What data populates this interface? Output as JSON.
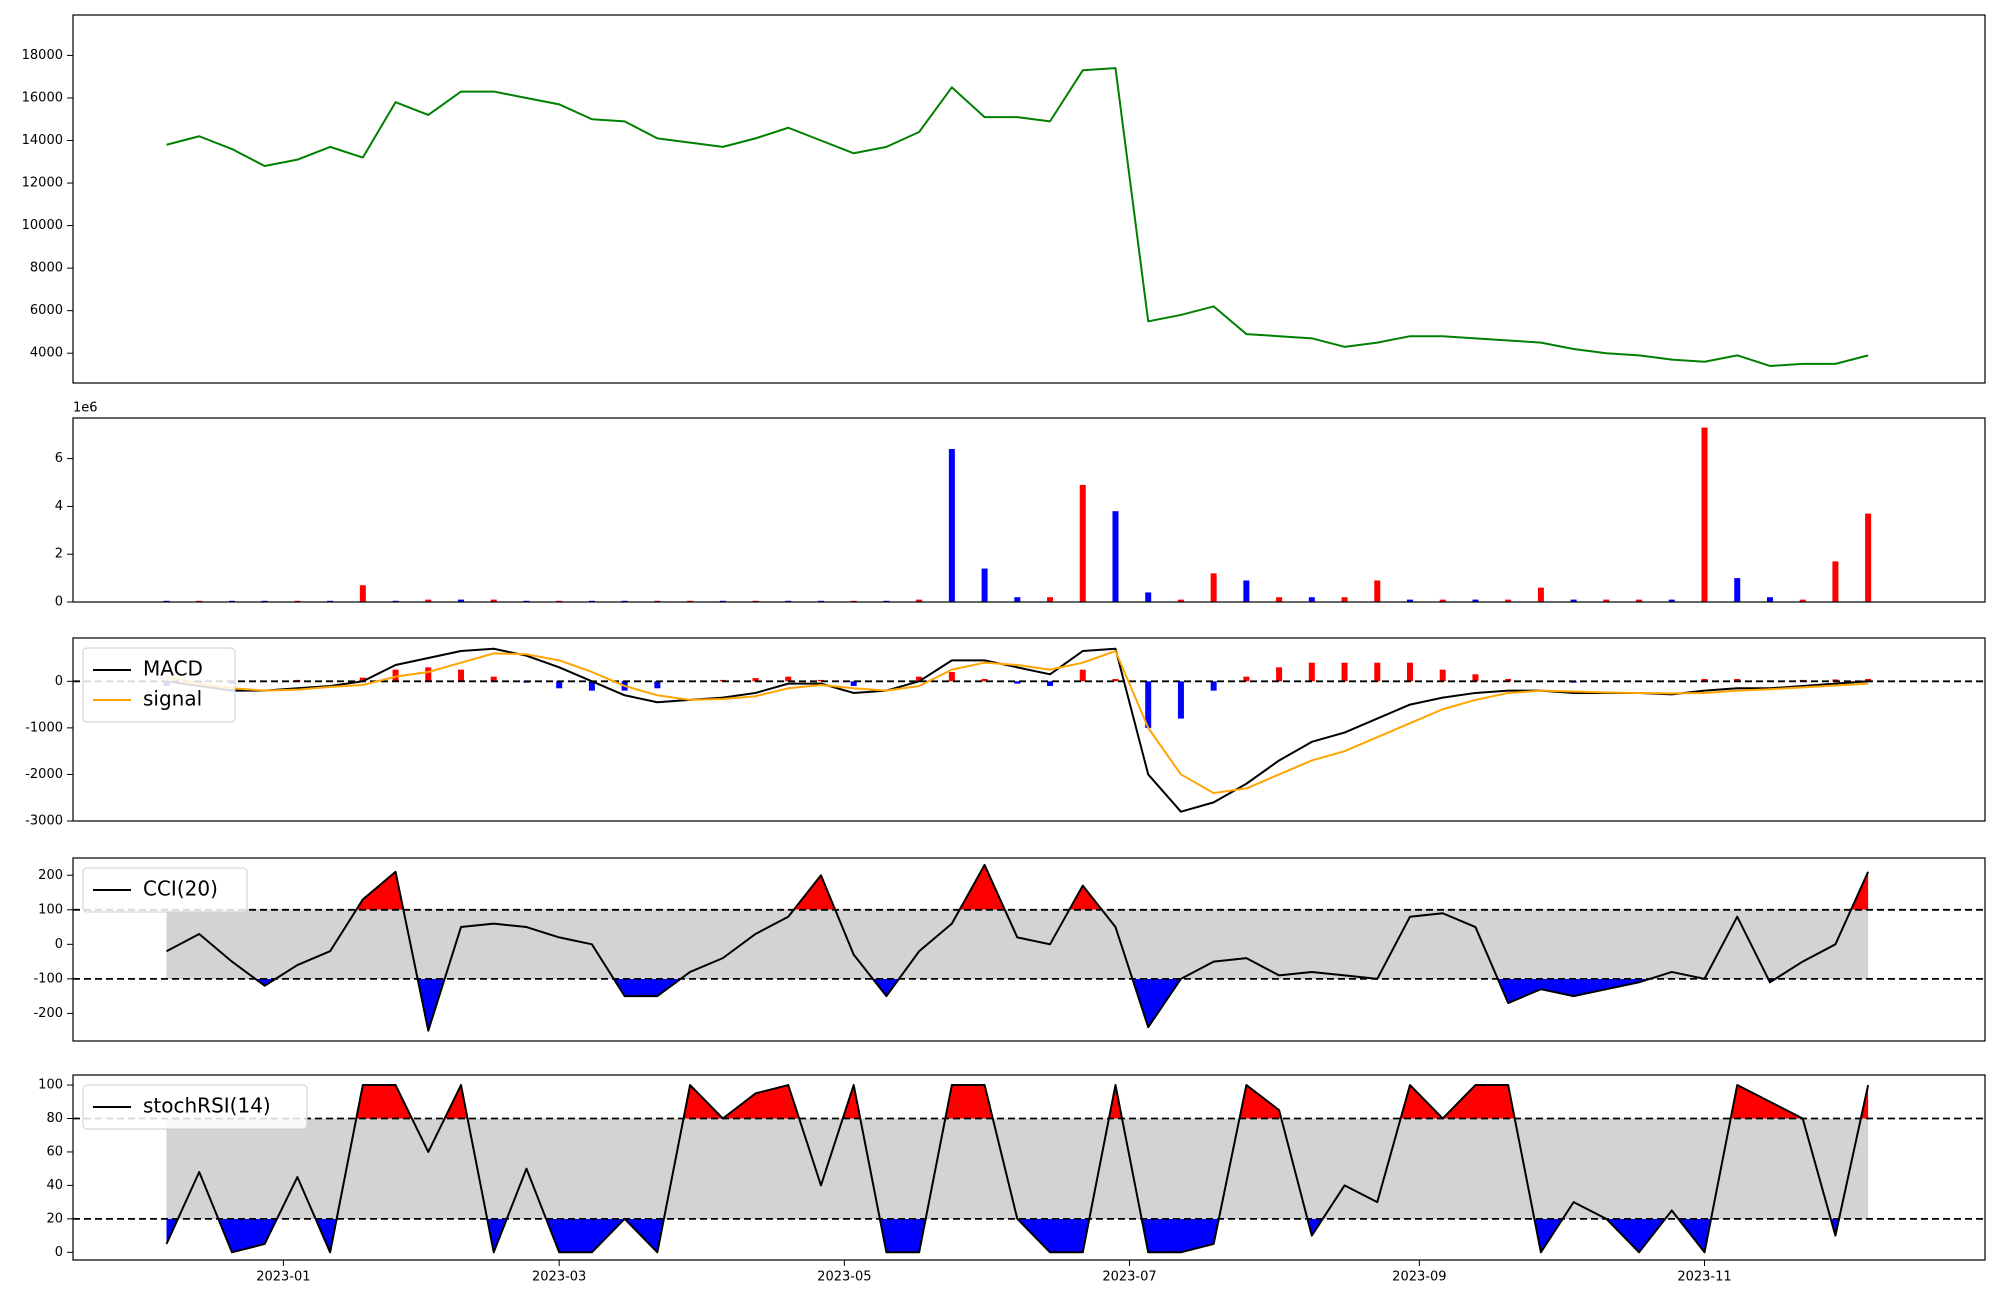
{
  "chart_data": [
    {
      "type": "line",
      "x": [
        "2022-12-07",
        "2022-12-14",
        "2022-12-21",
        "2022-12-28",
        "2023-01-04",
        "2023-01-11",
        "2023-01-18",
        "2023-01-25",
        "2023-02-01",
        "2023-02-08",
        "2023-02-15",
        "2023-02-22",
        "2023-03-01",
        "2023-03-08",
        "2023-03-15",
        "2023-03-22",
        "2023-03-29",
        "2023-04-05",
        "2023-04-12",
        "2023-04-19",
        "2023-04-26",
        "2023-05-03",
        "2023-05-10",
        "2023-05-17",
        "2023-05-24",
        "2023-05-31",
        "2023-06-07",
        "2023-06-14",
        "2023-06-21",
        "2023-06-28",
        "2023-07-05",
        "2023-07-12",
        "2023-07-19",
        "2023-07-26",
        "2023-08-02",
        "2023-08-09",
        "2023-08-16",
        "2023-08-23",
        "2023-08-30",
        "2023-09-06",
        "2023-09-13",
        "2023-09-20",
        "2023-09-27",
        "2023-10-04",
        "2023-10-11",
        "2023-10-18",
        "2023-10-25",
        "2023-11-01",
        "2023-11-08",
        "2023-11-15",
        "2023-11-22",
        "2023-11-29",
        "2023-12-06"
      ],
      "series": [
        {
          "color": "#008000",
          "values": [
            13800,
            14200,
            13600,
            12800,
            13100,
            13700,
            13200,
            15800,
            15200,
            16300,
            16300,
            16000,
            15700,
            15000,
            14900,
            14100,
            13900,
            13700,
            14100,
            14600,
            14000,
            13400,
            13700,
            14400,
            16500,
            15100,
            15100,
            14900,
            17300,
            17400,
            5500,
            5800,
            6200,
            4900,
            4800,
            4700,
            4300,
            4500,
            4800,
            4800,
            4700,
            4600,
            4500,
            4200,
            4000,
            3900,
            3700,
            3600,
            3900,
            3400,
            3500,
            3500,
            3900
          ]
        }
      ],
      "xlim": [
        "2022-11-17",
        "2023-12-31"
      ],
      "ylim": [
        2600,
        19900
      ],
      "yticks": [
        4000,
        6000,
        8000,
        10000,
        12000,
        14000,
        16000,
        18000
      ]
    },
    {
      "type": "bar",
      "x": [
        "2022-12-07",
        "2022-12-14",
        "2022-12-21",
        "2022-12-28",
        "2023-01-04",
        "2023-01-11",
        "2023-01-18",
        "2023-01-25",
        "2023-02-01",
        "2023-02-08",
        "2023-02-15",
        "2023-02-22",
        "2023-03-01",
        "2023-03-08",
        "2023-03-15",
        "2023-03-22",
        "2023-03-29",
        "2023-04-05",
        "2023-04-12",
        "2023-04-19",
        "2023-04-26",
        "2023-05-03",
        "2023-05-10",
        "2023-05-17",
        "2023-05-24",
        "2023-05-31",
        "2023-06-07",
        "2023-06-14",
        "2023-06-21",
        "2023-06-28",
        "2023-07-05",
        "2023-07-12",
        "2023-07-19",
        "2023-07-26",
        "2023-08-02",
        "2023-08-09",
        "2023-08-16",
        "2023-08-23",
        "2023-08-30",
        "2023-09-06",
        "2023-09-13",
        "2023-09-20",
        "2023-09-27",
        "2023-10-04",
        "2023-10-11",
        "2023-10-18",
        "2023-10-25",
        "2023-11-01",
        "2023-11-08",
        "2023-11-15",
        "2023-11-22",
        "2023-11-29",
        "2023-12-06"
      ],
      "values": [
        0.05,
        0.05,
        0.05,
        0.05,
        0.05,
        0.05,
        0.7,
        0.05,
        0.1,
        0.1,
        0.1,
        0.05,
        0.05,
        0.05,
        0.05,
        0.05,
        0.05,
        0.05,
        0.05,
        0.05,
        0.05,
        0.05,
        0.05,
        0.1,
        6.4,
        1.4,
        0.2,
        0.2,
        4.9,
        3.8,
        0.4,
        0.1,
        1.2,
        0.9,
        0.2,
        0.2,
        0.2,
        0.9,
        0.1,
        0.1,
        0.1,
        0.1,
        0.6,
        0.1,
        0.1,
        0.1,
        0.1,
        7.3,
        1.0,
        0.2,
        0.1,
        1.7,
        3.7
      ],
      "colors": [
        "blue",
        "red",
        "blue",
        "blue",
        "red",
        "blue",
        "red",
        "blue",
        "red",
        "blue",
        "red",
        "blue",
        "red",
        "blue",
        "blue",
        "red",
        "red",
        "blue",
        "red",
        "blue",
        "blue",
        "red",
        "blue",
        "red",
        "blue",
        "blue",
        "blue",
        "red",
        "red",
        "blue",
        "blue",
        "red",
        "red",
        "blue",
        "red",
        "blue",
        "red",
        "red",
        "blue",
        "red",
        "blue",
        "red",
        "red",
        "blue",
        "red",
        "red",
        "blue",
        "red",
        "blue",
        "blue",
        "red",
        "red",
        "red"
      ],
      "offset_label": "1e6",
      "xlim": [
        "2022-11-17",
        "2023-12-31"
      ],
      "ylim": [
        0,
        7.7
      ],
      "yticks": [
        0,
        2,
        4,
        6
      ]
    },
    {
      "type": "macd",
      "x": [
        "2022-12-07",
        "2022-12-14",
        "2022-12-21",
        "2022-12-28",
        "2023-01-04",
        "2023-01-11",
        "2023-01-18",
        "2023-01-25",
        "2023-02-01",
        "2023-02-08",
        "2023-02-15",
        "2023-02-22",
        "2023-03-01",
        "2023-03-08",
        "2023-03-15",
        "2023-03-22",
        "2023-03-29",
        "2023-04-05",
        "2023-04-12",
        "2023-04-19",
        "2023-04-26",
        "2023-05-03",
        "2023-05-10",
        "2023-05-17",
        "2023-05-24",
        "2023-05-31",
        "2023-06-07",
        "2023-06-14",
        "2023-06-21",
        "2023-06-28",
        "2023-07-05",
        "2023-07-12",
        "2023-07-19",
        "2023-07-26",
        "2023-08-02",
        "2023-08-09",
        "2023-08-16",
        "2023-08-23",
        "2023-08-30",
        "2023-09-06",
        "2023-09-13",
        "2023-09-20",
        "2023-09-27",
        "2023-10-04",
        "2023-10-11",
        "2023-10-18",
        "2023-10-25",
        "2023-11-01",
        "2023-11-08",
        "2023-11-15",
        "2023-11-22",
        "2023-11-29",
        "2023-12-06"
      ],
      "histogram": {
        "positive_color": "red",
        "negative_color": "blue",
        "values": [
          -100,
          -50,
          -50,
          0,
          30,
          20,
          80,
          250,
          300,
          250,
          100,
          -30,
          -150,
          -200,
          -200,
          -150,
          0,
          30,
          70,
          100,
          30,
          -100,
          0,
          100,
          200,
          50,
          -50,
          -100,
          250,
          50,
          -1000,
          -800,
          -200,
          100,
          300,
          400,
          400,
          400,
          400,
          250,
          150,
          50,
          0,
          -30,
          -10,
          0,
          -20,
          50,
          50,
          20,
          30,
          40,
          50
        ]
      },
      "series": [
        {
          "name": "MACD",
          "color": "#000000",
          "values": [
            0,
            -100,
            -200,
            -200,
            -150,
            -100,
            0,
            350,
            500,
            650,
            700,
            550,
            300,
            0,
            -300,
            -450,
            -400,
            -350,
            -250,
            -50,
            -50,
            -250,
            -200,
            0,
            450,
            450,
            300,
            150,
            650,
            700,
            -2000,
            -2800,
            -2600,
            -2200,
            -1700,
            -1300,
            -1100,
            -800,
            -500,
            -350,
            -250,
            -200,
            -200,
            -250,
            -250,
            -250,
            -280,
            -200,
            -150,
            -150,
            -100,
            -50,
            0
          ]
        },
        {
          "name": "signal",
          "color": "#ffa500",
          "values": [
            100,
            -50,
            -150,
            -200,
            -180,
            -120,
            -80,
            100,
            200,
            400,
            600,
            580,
            450,
            200,
            -100,
            -300,
            -400,
            -380,
            -320,
            -150,
            -80,
            -150,
            -200,
            -100,
            250,
            400,
            350,
            250,
            400,
            650,
            -1000,
            -2000,
            -2400,
            -2300,
            -2000,
            -1700,
            -1500,
            -1200,
            -900,
            -600,
            -400,
            -250,
            -200,
            -220,
            -240,
            -250,
            -260,
            -250,
            -200,
            -170,
            -130,
            -90,
            -50
          ]
        }
      ],
      "hlines": [
        0
      ],
      "xlim": [
        "2022-11-17",
        "2023-12-31"
      ],
      "ylim": [
        -3000,
        930
      ],
      "yticks": [
        -3000,
        -2000,
        -1000,
        0
      ]
    },
    {
      "type": "oscillator",
      "x": [
        "2022-12-07",
        "2022-12-14",
        "2022-12-21",
        "2022-12-28",
        "2023-01-04",
        "2023-01-11",
        "2023-01-18",
        "2023-01-25",
        "2023-02-01",
        "2023-02-08",
        "2023-02-15",
        "2023-02-22",
        "2023-03-01",
        "2023-03-08",
        "2023-03-15",
        "2023-03-22",
        "2023-03-29",
        "2023-04-05",
        "2023-04-12",
        "2023-04-19",
        "2023-04-26",
        "2023-05-03",
        "2023-05-10",
        "2023-05-17",
        "2023-05-24",
        "2023-05-31",
        "2023-06-07",
        "2023-06-14",
        "2023-06-21",
        "2023-06-28",
        "2023-07-05",
        "2023-07-12",
        "2023-07-19",
        "2023-07-26",
        "2023-08-02",
        "2023-08-09",
        "2023-08-16",
        "2023-08-23",
        "2023-08-30",
        "2023-09-06",
        "2023-09-13",
        "2023-09-20",
        "2023-09-27",
        "2023-10-04",
        "2023-10-11",
        "2023-10-18",
        "2023-10-25",
        "2023-11-01",
        "2023-11-08",
        "2023-11-15",
        "2023-11-22",
        "2023-11-29",
        "2023-12-06"
      ],
      "series": [
        {
          "name": "CCI(20)",
          "color": "#000000",
          "values": [
            -20,
            30,
            -50,
            -120,
            -60,
            -20,
            130,
            210,
            -250,
            50,
            60,
            50,
            20,
            0,
            -150,
            -150,
            -80,
            -40,
            30,
            80,
            200,
            -30,
            -150,
            -20,
            60,
            230,
            20,
            0,
            170,
            50,
            -240,
            -100,
            -50,
            -40,
            -90,
            -80,
            -90,
            -100,
            80,
            90,
            50,
            -170,
            -130,
            -150,
            -130,
            -110,
            -80,
            -100,
            80,
            -110,
            -50,
            0,
            210
          ]
        }
      ],
      "band": [
        -100,
        100
      ],
      "band_color": "#d3d3d3",
      "above_color": "red",
      "below_color": "blue",
      "xlim": [
        "2022-11-17",
        "2023-12-31"
      ],
      "ylim": [
        -280,
        250
      ],
      "yticks": [
        -200,
        -100,
        0,
        100,
        200
      ]
    },
    {
      "type": "oscillator",
      "x": [
        "2022-12-07",
        "2022-12-14",
        "2022-12-21",
        "2022-12-28",
        "2023-01-04",
        "2023-01-11",
        "2023-01-18",
        "2023-01-25",
        "2023-02-01",
        "2023-02-08",
        "2023-02-15",
        "2023-02-22",
        "2023-03-01",
        "2023-03-08",
        "2023-03-15",
        "2023-03-22",
        "2023-03-29",
        "2023-04-05",
        "2023-04-12",
        "2023-04-19",
        "2023-04-26",
        "2023-05-03",
        "2023-05-10",
        "2023-05-17",
        "2023-05-24",
        "2023-05-31",
        "2023-06-07",
        "2023-06-14",
        "2023-06-21",
        "2023-06-28",
        "2023-07-05",
        "2023-07-12",
        "2023-07-19",
        "2023-07-26",
        "2023-08-02",
        "2023-08-09",
        "2023-08-16",
        "2023-08-23",
        "2023-08-30",
        "2023-09-06",
        "2023-09-13",
        "2023-09-20",
        "2023-09-27",
        "2023-10-04",
        "2023-10-11",
        "2023-10-18",
        "2023-10-25",
        "2023-11-01",
        "2023-11-08",
        "2023-11-15",
        "2023-11-22",
        "2023-11-29",
        "2023-12-06"
      ],
      "series": [
        {
          "name": "stochRSI(14)",
          "color": "#000000",
          "values": [
            5,
            48,
            0,
            5,
            45,
            0,
            100,
            100,
            60,
            100,
            0,
            50,
            0,
            0,
            20,
            0,
            100,
            80,
            95,
            100,
            40,
            100,
            0,
            0,
            100,
            100,
            20,
            0,
            0,
            100,
            0,
            0,
            5,
            100,
            85,
            10,
            40,
            30,
            100,
            80,
            100,
            100,
            0,
            30,
            20,
            0,
            25,
            0,
            100,
            90,
            80,
            10,
            100
          ]
        }
      ],
      "band": [
        20,
        80
      ],
      "band_color": "#d3d3d3",
      "above_color": "red",
      "below_color": "blue",
      "xlim": [
        "2022-11-17",
        "2023-12-31"
      ],
      "ylim": [
        -4.6,
        106
      ],
      "yticks": [
        0,
        20,
        40,
        60,
        80,
        100
      ],
      "xticks": [
        "2023-01",
        "2023-03",
        "2023-05",
        "2023-07",
        "2023-09",
        "2023-11"
      ]
    }
  ]
}
